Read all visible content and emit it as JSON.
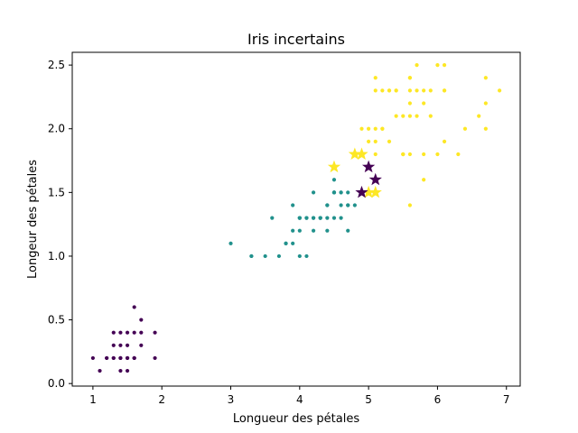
{
  "chart_data": {
    "type": "scatter",
    "title": "Iris incertains",
    "xlabel": "Longueur des pétales",
    "ylabel": "Longeur des pétales",
    "xlim": [
      0.7,
      7.2
    ],
    "ylim": [
      -0.02,
      2.6
    ],
    "xticks": [
      1,
      2,
      3,
      4,
      5,
      6,
      7
    ],
    "yticks": [
      0.0,
      0.5,
      1.0,
      1.5,
      2.0,
      2.5
    ],
    "grid": false,
    "colors": {
      "class0": "#440154",
      "class1": "#21918c",
      "class2": "#fde725"
    },
    "series": [
      {
        "color": "#440154",
        "marker": "dot",
        "points": [
          [
            1.4,
            0.2
          ],
          [
            1.3,
            0.2
          ],
          [
            1.5,
            0.2
          ],
          [
            1.7,
            0.4
          ],
          [
            1.4,
            0.3
          ],
          [
            1.5,
            0.1
          ],
          [
            1.6,
            0.2
          ],
          [
            1.1,
            0.1
          ],
          [
            1.2,
            0.2
          ],
          [
            1.4,
            0.4
          ],
          [
            1.3,
            0.4
          ],
          [
            1.7,
            0.3
          ],
          [
            1.5,
            0.4
          ],
          [
            1.0,
            0.2
          ],
          [
            1.9,
            0.2
          ],
          [
            1.6,
            0.4
          ],
          [
            1.5,
            0.3
          ],
          [
            1.4,
            0.1
          ],
          [
            1.6,
            0.6
          ],
          [
            1.9,
            0.4
          ],
          [
            1.3,
            0.3
          ],
          [
            1.6,
            0.2
          ],
          [
            1.5,
            0.2
          ],
          [
            1.7,
            0.5
          ],
          [
            1.4,
            0.2
          ],
          [
            1.2,
            0.2
          ],
          [
            1.3,
            0.2
          ],
          [
            1.5,
            0.2
          ],
          [
            1.6,
            0.2
          ],
          [
            1.4,
            0.2
          ]
        ]
      },
      {
        "color": "#21918c",
        "marker": "dot",
        "points": [
          [
            4.7,
            1.4
          ],
          [
            4.5,
            1.5
          ],
          [
            4.0,
            1.3
          ],
          [
            4.6,
            1.5
          ],
          [
            3.3,
            1.0
          ],
          [
            3.9,
            1.4
          ],
          [
            3.5,
            1.0
          ],
          [
            4.2,
            1.5
          ],
          [
            4.0,
            1.0
          ],
          [
            4.7,
            1.4
          ],
          [
            3.6,
            1.3
          ],
          [
            4.4,
            1.4
          ],
          [
            4.1,
            1.0
          ],
          [
            4.5,
            1.5
          ],
          [
            3.9,
            1.1
          ],
          [
            4.8,
            1.8
          ],
          [
            4.0,
            1.3
          ],
          [
            4.9,
            1.5
          ],
          [
            4.7,
            1.2
          ],
          [
            4.3,
            1.3
          ],
          [
            4.4,
            1.4
          ],
          [
            4.8,
            1.4
          ],
          [
            5.0,
            1.7
          ],
          [
            4.5,
            1.5
          ],
          [
            3.8,
            1.1
          ],
          [
            3.7,
            1.0
          ],
          [
            3.9,
            1.2
          ],
          [
            5.1,
            1.6
          ],
          [
            4.5,
            1.5
          ],
          [
            4.7,
            1.5
          ],
          [
            4.4,
            1.3
          ],
          [
            4.1,
            1.3
          ],
          [
            4.0,
            1.3
          ],
          [
            4.4,
            1.2
          ],
          [
            4.6,
            1.4
          ],
          [
            4.0,
            1.2
          ],
          [
            3.3,
            1.0
          ],
          [
            4.2,
            1.3
          ],
          [
            4.2,
            1.2
          ],
          [
            4.3,
            1.3
          ],
          [
            3.0,
            1.1
          ],
          [
            4.1,
            1.3
          ],
          [
            4.6,
            1.3
          ],
          [
            4.5,
            1.6
          ],
          [
            4.6,
            1.5
          ],
          [
            4.2,
            1.3
          ],
          [
            3.8,
            1.1
          ],
          [
            4.3,
            1.3
          ],
          [
            4.9,
            1.5
          ],
          [
            4.5,
            1.3
          ]
        ]
      },
      {
        "color": "#fde725",
        "marker": "dot",
        "points": [
          [
            6.0,
            2.5
          ],
          [
            5.1,
            1.9
          ],
          [
            5.9,
            2.1
          ],
          [
            5.6,
            1.8
          ],
          [
            5.8,
            2.2
          ],
          [
            6.6,
            2.1
          ],
          [
            4.5,
            1.7
          ],
          [
            6.3,
            1.8
          ],
          [
            5.8,
            1.8
          ],
          [
            6.1,
            2.5
          ],
          [
            5.1,
            2.0
          ],
          [
            5.3,
            1.9
          ],
          [
            5.5,
            2.1
          ],
          [
            5.0,
            2.0
          ],
          [
            5.1,
            2.4
          ],
          [
            5.3,
            2.3
          ],
          [
            5.5,
            1.8
          ],
          [
            6.7,
            2.2
          ],
          [
            6.9,
            2.3
          ],
          [
            5.0,
            1.5
          ],
          [
            5.7,
            2.3
          ],
          [
            4.9,
            2.0
          ],
          [
            6.7,
            2.0
          ],
          [
            4.9,
            1.8
          ],
          [
            5.7,
            2.1
          ],
          [
            6.0,
            1.8
          ],
          [
            4.8,
            1.8
          ],
          [
            4.9,
            1.8
          ],
          [
            5.6,
            2.1
          ],
          [
            5.8,
            1.6
          ],
          [
            6.1,
            1.9
          ],
          [
            6.4,
            2.0
          ],
          [
            5.6,
            2.2
          ],
          [
            5.1,
            1.5
          ],
          [
            5.6,
            1.4
          ],
          [
            6.1,
            2.3
          ],
          [
            5.6,
            2.4
          ],
          [
            5.5,
            1.8
          ],
          [
            4.8,
            1.8
          ],
          [
            5.4,
            2.1
          ],
          [
            5.6,
            2.4
          ],
          [
            5.1,
            2.3
          ],
          [
            5.9,
            2.3
          ],
          [
            5.7,
            2.5
          ],
          [
            5.2,
            2.3
          ],
          [
            5.0,
            1.9
          ],
          [
            5.2,
            2.0
          ],
          [
            5.4,
            2.3
          ],
          [
            5.1,
            1.8
          ],
          [
            5.2,
            2.0
          ],
          [
            5.6,
            2.3
          ],
          [
            5.4,
            2.3
          ],
          [
            5.8,
            2.3
          ],
          [
            6.7,
            2.4
          ],
          [
            5.5,
            1.8
          ],
          [
            6.1,
            2.3
          ],
          [
            5.3,
            2.3
          ]
        ]
      },
      {
        "color": "#fde725",
        "marker": "star",
        "points": [
          [
            4.5,
            1.7
          ],
          [
            4.8,
            1.8
          ],
          [
            4.9,
            1.8
          ],
          [
            5.0,
            1.5
          ],
          [
            5.1,
            1.5
          ]
        ]
      },
      {
        "color": "#440154",
        "marker": "star",
        "points": [
          [
            4.9,
            1.5
          ],
          [
            5.0,
            1.7
          ],
          [
            5.1,
            1.6
          ]
        ]
      }
    ]
  }
}
